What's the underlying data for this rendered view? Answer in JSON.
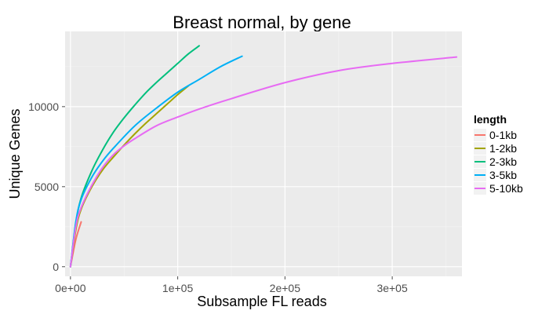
{
  "chart_data": {
    "type": "line",
    "title": "Breast normal, by gene",
    "xlabel": "Subsample FL reads",
    "ylabel": "Unique Genes",
    "xlim": [
      -5000,
      365000
    ],
    "ylim": [
      -600,
      14700
    ],
    "x_ticks": [
      {
        "value": 0,
        "label": "0e+00"
      },
      {
        "value": 100000,
        "label": "1e+05"
      },
      {
        "value": 200000,
        "label": "2e+05"
      },
      {
        "value": 300000,
        "label": "3e+05"
      }
    ],
    "y_ticks": [
      {
        "value": 0,
        "label": "0"
      },
      {
        "value": 5000,
        "label": "5000"
      },
      {
        "value": 10000,
        "label": "10000"
      }
    ],
    "grid": true,
    "legend": {
      "title": "length",
      "position": "right"
    },
    "series": [
      {
        "name": "0-1kb",
        "color": "#F8766D",
        "x": [
          0,
          5000,
          10000
        ],
        "y": [
          0,
          1700,
          2800
        ]
      },
      {
        "name": "1-2kb",
        "color": "#A3A500",
        "x": [
          0,
          5000,
          10000,
          20000,
          30000,
          40000,
          50000,
          60000,
          70000,
          80000,
          90000,
          100000,
          110000
        ],
        "y": [
          0,
          2300,
          3600,
          5000,
          6050,
          6850,
          7600,
          8300,
          8950,
          9550,
          10150,
          10750,
          11300
        ]
      },
      {
        "name": "2-3kb",
        "color": "#00BF7D",
        "x": [
          0,
          5000,
          10000,
          20000,
          30000,
          40000,
          50000,
          60000,
          70000,
          80000,
          90000,
          100000,
          110000,
          120000
        ],
        "y": [
          0,
          2700,
          4300,
          6000,
          7300,
          8400,
          9300,
          10100,
          10850,
          11500,
          12100,
          12700,
          13300,
          13800
        ]
      },
      {
        "name": "3-5kb",
        "color": "#00B0F6",
        "x": [
          0,
          5000,
          10000,
          20000,
          30000,
          40000,
          60000,
          80000,
          100000,
          120000,
          140000,
          160000
        ],
        "y": [
          0,
          2800,
          4200,
          5600,
          6600,
          7400,
          8800,
          9900,
          10900,
          11700,
          12500,
          13150
        ]
      },
      {
        "name": "5-10kb",
        "color": "#E76BF3",
        "x": [
          0,
          5000,
          10000,
          20000,
          30000,
          40000,
          50000,
          60000,
          80000,
          100000,
          120000,
          150000,
          200000,
          250000,
          300000,
          360000
        ],
        "y": [
          0,
          2500,
          3700,
          5100,
          6200,
          7000,
          7550,
          8000,
          8800,
          9350,
          9850,
          10500,
          11500,
          12250,
          12700,
          13100
        ]
      }
    ]
  }
}
